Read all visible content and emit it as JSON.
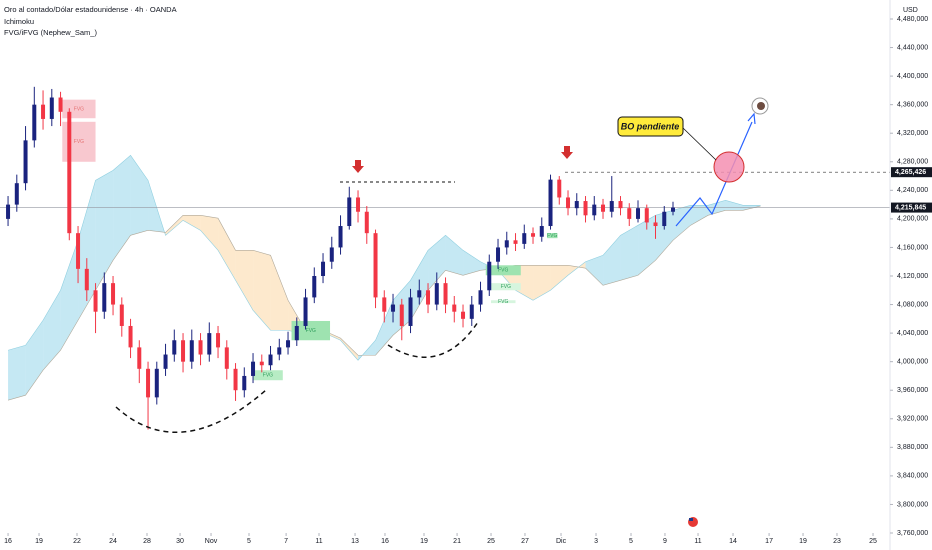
{
  "chart_data": {
    "type": "candlestick",
    "title": "Oro al contado/Dólar estadounidense · 4h · OANDA",
    "indicators": [
      "Ichimoku",
      "FVG/iFVG (Nephew_Sam_)"
    ],
    "currency": "USD",
    "annotation": "BO pendiente",
    "xlim": [
      -0.46,
      50.4
    ],
    "xticks": [
      {
        "value": 0,
        "label": "16"
      },
      {
        "value": 1.77,
        "label": "19"
      },
      {
        "value": 3.94,
        "label": "22"
      },
      {
        "value": 6.0,
        "label": "24"
      },
      {
        "value": 7.94,
        "label": "28"
      },
      {
        "value": 9.83,
        "label": "30"
      },
      {
        "value": 11.6,
        "label": "Nov"
      },
      {
        "value": 13.77,
        "label": "5"
      },
      {
        "value": 15.89,
        "label": "7"
      },
      {
        "value": 17.77,
        "label": "11"
      },
      {
        "value": 19.83,
        "label": "13"
      },
      {
        "value": 21.54,
        "label": "16"
      },
      {
        "value": 23.77,
        "label": "19"
      },
      {
        "value": 25.66,
        "label": "21"
      },
      {
        "value": 27.6,
        "label": "25"
      },
      {
        "value": 29.54,
        "label": "27"
      },
      {
        "value": 31.6,
        "label": "Dic"
      },
      {
        "value": 33.6,
        "label": "3"
      },
      {
        "value": 35.6,
        "label": "5"
      },
      {
        "value": 37.54,
        "label": "9"
      },
      {
        "value": 39.43,
        "label": "11"
      },
      {
        "value": 41.43,
        "label": "14"
      },
      {
        "value": 43.49,
        "label": "17"
      },
      {
        "value": 45.43,
        "label": "19"
      },
      {
        "value": 47.37,
        "label": "23"
      },
      {
        "value": 49.43,
        "label": "25"
      }
    ],
    "ylim": [
      3739000,
      4506600
    ],
    "yticks": [
      {
        "value": 3760000,
        "label": "3,760,000"
      },
      {
        "value": 3800000,
        "label": "3,800,000"
      },
      {
        "value": 3840000,
        "label": "3,840,000"
      },
      {
        "value": 3880000,
        "label": "3,880,000"
      },
      {
        "value": 3920000,
        "label": "3,920,000"
      },
      {
        "value": 3960000,
        "label": "3,960,000"
      },
      {
        "value": 4000000,
        "label": "4,000,000"
      },
      {
        "value": 4040000,
        "label": "4,040,000"
      },
      {
        "value": 4080000,
        "label": "4,080,000"
      },
      {
        "value": 4120000,
        "label": "4,120,000"
      },
      {
        "value": 4160000,
        "label": "4,160,000"
      },
      {
        "value": 4200000,
        "label": "4,200,000"
      },
      {
        "value": 4240000,
        "label": "4,240,000"
      },
      {
        "value": 4280000,
        "label": "4,280,000"
      },
      {
        "value": 4320000,
        "label": "4,320,000"
      },
      {
        "value": 4360000,
        "label": "4,360,000"
      },
      {
        "value": 4400000,
        "label": "4,400,000"
      },
      {
        "value": 4440000,
        "label": "4,440,000"
      },
      {
        "value": 4480000,
        "label": "4,480,000"
      }
    ],
    "candles": {
      "up_color": "#1a237e",
      "down_color": "#f23645",
      "x": [
        0,
        0.5,
        1,
        1.5,
        2,
        2.5,
        3,
        3.5,
        4,
        4.5,
        5,
        5.5,
        6,
        6.5,
        7,
        7.5,
        8,
        8.5,
        9,
        9.5,
        10,
        10.5,
        11,
        11.5,
        12,
        12.5,
        13,
        13.5,
        14,
        14.5,
        15,
        15.5,
        16,
        16.5,
        17,
        17.5,
        18,
        18.5,
        19,
        19.5,
        20,
        20.5,
        21,
        21.5,
        22,
        22.5,
        23,
        23.5,
        24,
        24.5,
        25,
        25.5,
        26,
        26.5,
        27,
        27.5,
        28,
        28.5,
        29,
        29.5,
        30,
        30.5,
        31,
        31.5,
        32,
        32.5,
        33,
        33.5,
        34,
        34.5,
        35,
        35.5,
        36,
        36.5,
        37,
        37.5,
        38
      ],
      "open": [
        4200000,
        4220000,
        4250000,
        4310000,
        4360000,
        4340000,
        4370000,
        4350000,
        4180000,
        4130000,
        4100000,
        4070000,
        4110000,
        4080000,
        4050000,
        4020000,
        3990000,
        3950000,
        3990000,
        4010000,
        4030000,
        4000000,
        4030000,
        4010000,
        4040000,
        4020000,
        3990000,
        3960000,
        3980000,
        4000000,
        3995000,
        4010000,
        4020000,
        4030000,
        4050000,
        4090000,
        4120000,
        4140000,
        4160000,
        4190000,
        4230000,
        4210000,
        4180000,
        4090000,
        4070000,
        4080000,
        4050000,
        4090000,
        4100000,
        4080000,
        4110000,
        4080000,
        4070000,
        4060000,
        4080000,
        4100000,
        4140000,
        4160000,
        4170000,
        4165000,
        4180000,
        4175000,
        4190000,
        4255000,
        4230000,
        4215000,
        4225000,
        4205000,
        4220000,
        4210000,
        4225000,
        4215000,
        4200000,
        4215000,
        4195000,
        4190000,
        4210000
      ],
      "high": [
        4232000,
        4262000,
        4330000,
        4385000,
        4380000,
        4382000,
        4378000,
        4355000,
        4190000,
        4145000,
        4110000,
        4125000,
        4120000,
        4090000,
        4060000,
        4030000,
        4000000,
        4000000,
        4025000,
        4045000,
        4040000,
        4045000,
        4040000,
        4055000,
        4050000,
        4030000,
        3998000,
        3992000,
        4012000,
        4010000,
        4022000,
        4032000,
        4042000,
        4062000,
        4102000,
        4132000,
        4152000,
        4175000,
        4205000,
        4245000,
        4240000,
        4218000,
        4185000,
        4100000,
        4095000,
        4088000,
        4102000,
        4115000,
        4110000,
        4125000,
        4118000,
        4092000,
        4080000,
        4092000,
        4112000,
        4150000,
        4172000,
        4182000,
        4180000,
        4192000,
        4188000,
        4202000,
        4262000,
        4260000,
        4240000,
        4236000,
        4232000,
        4232000,
        4228000,
        4260000,
        4232000,
        4222000,
        4226000,
        4220000,
        4205000,
        4218000,
        4224000
      ],
      "low": [
        4190000,
        4210000,
        4240000,
        4300000,
        4325000,
        4330000,
        4330000,
        4170000,
        4110000,
        4085000,
        4040000,
        4060000,
        4065000,
        4035000,
        4005000,
        3970000,
        3905000,
        3940000,
        3980000,
        4000000,
        3985000,
        3990000,
        3995000,
        4000000,
        4005000,
        3975000,
        3945000,
        3950000,
        3970000,
        3985000,
        3988000,
        4002000,
        4010000,
        4022000,
        4045000,
        4082000,
        4110000,
        4130000,
        4150000,
        4185000,
        4195000,
        4165000,
        4075000,
        4055000,
        4055000,
        4030000,
        4040000,
        4080000,
        4068000,
        4072000,
        4068000,
        4055000,
        4048000,
        4050000,
        4070000,
        4092000,
        4130000,
        4150000,
        4155000,
        4158000,
        4165000,
        4168000,
        4185000,
        4220000,
        4205000,
        4205000,
        4195000,
        4198000,
        4200000,
        4202000,
        4205000,
        4190000,
        4195000,
        4185000,
        4172000,
        4185000,
        4205000
      ],
      "close": [
        4220000,
        4250000,
        4310000,
        4360000,
        4340000,
        4370000,
        4350000,
        4180000,
        4130000,
        4100000,
        4070000,
        4110000,
        4080000,
        4050000,
        4020000,
        3990000,
        3950000,
        3990000,
        4010000,
        4030000,
        4000000,
        4030000,
        4010000,
        4040000,
        4020000,
        3990000,
        3960000,
        3980000,
        4000000,
        3995000,
        4010000,
        4020000,
        4030000,
        4050000,
        4090000,
        4120000,
        4140000,
        4160000,
        4190000,
        4230000,
        4210000,
        4180000,
        4090000,
        4070000,
        4080000,
        4050000,
        4090000,
        4100000,
        4080000,
        4110000,
        4080000,
        4070000,
        4060000,
        4080000,
        4100000,
        4140000,
        4160000,
        4170000,
        4165000,
        4180000,
        4175000,
        4190000,
        4255000,
        4230000,
        4215000,
        4225000,
        4205000,
        4220000,
        4210000,
        4225000,
        4215000,
        4200000,
        4215000,
        4195000,
        4190000,
        4210000,
        4215845
      ]
    },
    "ichimoku": {
      "bull_color": "#bfe6f2",
      "bear_color": "#fde7c8",
      "x": [
        0,
        1,
        2,
        3,
        4,
        5,
        6,
        7,
        8,
        9,
        10,
        11,
        12,
        13,
        14,
        15,
        16,
        17,
        18,
        19,
        20,
        21,
        22,
        23,
        24,
        25,
        26,
        27,
        28,
        29,
        30,
        31,
        32,
        33,
        34,
        35,
        36,
        37,
        38,
        39,
        40,
        41,
        42,
        43
      ],
      "span_a": [
        4016000,
        4023000,
        4058000,
        4100000,
        4170000,
        4254000,
        4268000,
        4289000,
        4254000,
        4177000,
        4198000,
        4184000,
        4156000,
        4114000,
        4072000,
        4044000,
        4044000,
        4037000,
        4041000,
        4030000,
        4002000,
        4030000,
        4086000,
        4114000,
        4156000,
        4177000,
        4156000,
        4140000,
        4128000,
        4100000,
        4086000,
        4100000,
        4121000,
        4140000,
        4149000,
        4177000,
        4191000,
        4205000,
        4212000,
        4219000,
        4219000,
        4226000,
        4219000,
        4219000
      ],
      "span_b": [
        3946000,
        3953000,
        3988000,
        4016000,
        4058000,
        4100000,
        4142000,
        4177000,
        4184000,
        4181000,
        4205000,
        4205000,
        4201000,
        4156000,
        4156000,
        4149000,
        4086000,
        4044000,
        4044000,
        4033000,
        4009000,
        4009000,
        4037000,
        4058000,
        4100000,
        4128000,
        4121000,
        4128000,
        4131000,
        4135000,
        4135000,
        4135000,
        4135000,
        4131000,
        4107000,
        4114000,
        4121000,
        4142000,
        4170000,
        4191000,
        4205000,
        4212000,
        4212000,
        4218000
      ]
    },
    "fvg": [
      {
        "label": "FVG",
        "color": "#f8c8cf",
        "x": [
          3.1,
          5.0
        ],
        "y": [
          4341000,
          4367000
        ]
      },
      {
        "label": "FVG",
        "color": "#f8c8cf",
        "x": [
          3.1,
          5.0
        ],
        "y": [
          4280000,
          4336000
        ]
      },
      {
        "label": "FVG",
        "color": "#b7ecc4",
        "x": [
          14.0,
          15.7
        ],
        "y": [
          3974000,
          3988000
        ]
      },
      {
        "label": "FVG",
        "color": "#9ee3b0",
        "x": [
          16.2,
          18.4
        ],
        "y": [
          4030000,
          4057000
        ]
      },
      {
        "label": "FVG",
        "color": "#9ee3b0",
        "x": [
          30.8,
          31.4
        ],
        "y": [
          4173000,
          4180000
        ]
      },
      {
        "label": "FVG",
        "color": "#9ee3b0",
        "x": [
          27.3,
          29.3
        ],
        "y": [
          4121000,
          4135000
        ]
      },
      {
        "label": "FVG",
        "color": "#d6f5de",
        "x": [
          27.6,
          29.3
        ],
        "y": [
          4100000,
          4110000
        ]
      },
      {
        "label": "FVG",
        "color": "#d6f5de",
        "x": [
          27.6,
          29.0
        ],
        "y": [
          4082000,
          4086000
        ]
      }
    ],
    "levels": [
      {
        "value": 4265426,
        "label": "4,265,426"
      },
      {
        "value": 4215845,
        "label": "4,215,845"
      }
    ]
  }
}
